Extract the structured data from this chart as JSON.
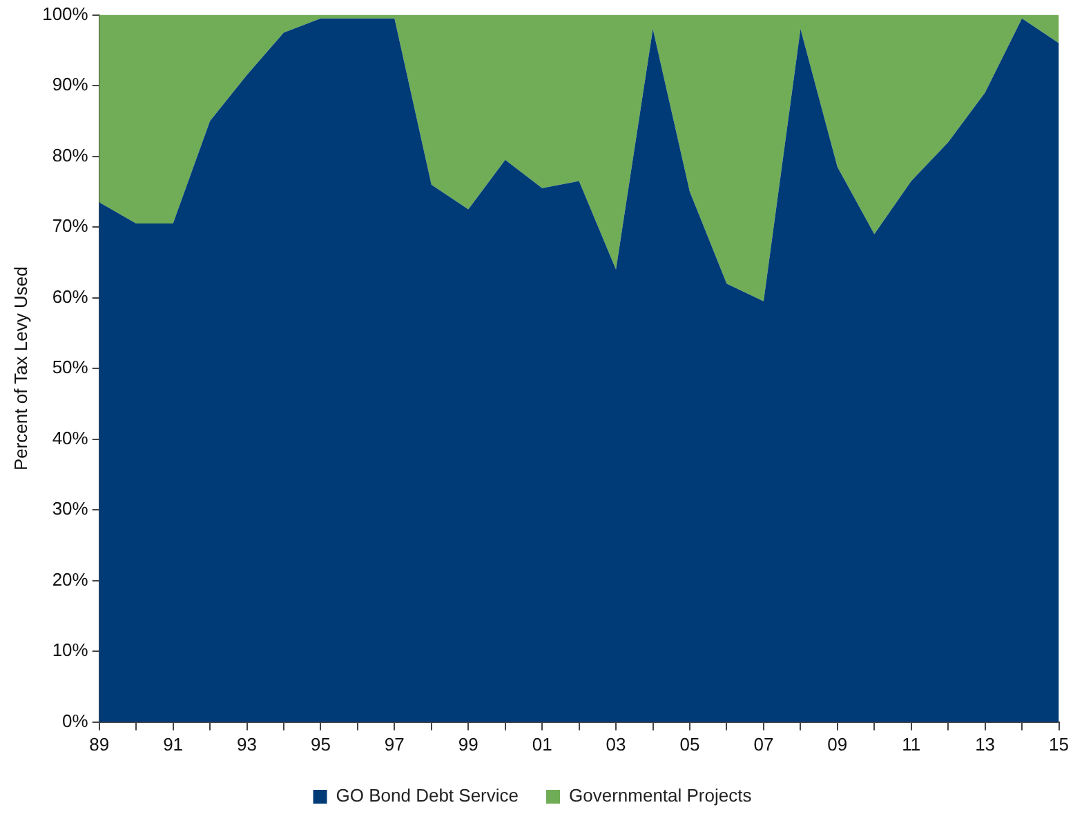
{
  "chart_data": {
    "type": "area",
    "stacked": true,
    "ylabel": "Percent of Tax Levy Used",
    "categories": [
      "89",
      null,
      "91",
      null,
      "93",
      null,
      "95",
      null,
      "97",
      null,
      "99",
      null,
      "01",
      null,
      "03",
      null,
      "05",
      null,
      "07",
      null,
      "09",
      null,
      "11",
      null,
      "13",
      null,
      "15"
    ],
    "ylim": [
      0,
      100
    ],
    "yticks": [
      {
        "value": 0,
        "label": "0%"
      },
      {
        "value": 10,
        "label": "10%"
      },
      {
        "value": 20,
        "label": "20%"
      },
      {
        "value": 30,
        "label": "30%"
      },
      {
        "value": 40,
        "label": "40%"
      },
      {
        "value": 50,
        "label": "50%"
      },
      {
        "value": 60,
        "label": "60%"
      },
      {
        "value": 70,
        "label": "70%"
      },
      {
        "value": 80,
        "label": "80%"
      },
      {
        "value": 90,
        "label": "90%"
      },
      {
        "value": 100,
        "label": "100%"
      }
    ],
    "grid": false,
    "legend": "bottom",
    "series": [
      {
        "name": "GO Bond Debt Service",
        "color": "#003b78",
        "values": [
          73.5,
          70.5,
          70.5,
          85,
          91.5,
          97.5,
          99.5,
          99.5,
          99.5,
          76,
          72.5,
          79.5,
          75.5,
          76.5,
          64,
          98,
          75,
          62,
          59.5,
          98,
          78.5,
          69,
          76.5,
          82,
          89,
          99.5,
          96
        ]
      },
      {
        "name": "Governmental Projects",
        "color": "#70ad56",
        "values": [
          26.5,
          29.5,
          29.5,
          15,
          8.5,
          2.5,
          0.5,
          0.5,
          0.5,
          24,
          27.5,
          20.5,
          24.5,
          23.5,
          36,
          2,
          25,
          38,
          40.5,
          2,
          21.5,
          31,
          23.5,
          18,
          11,
          0.5,
          4
        ]
      }
    ]
  }
}
